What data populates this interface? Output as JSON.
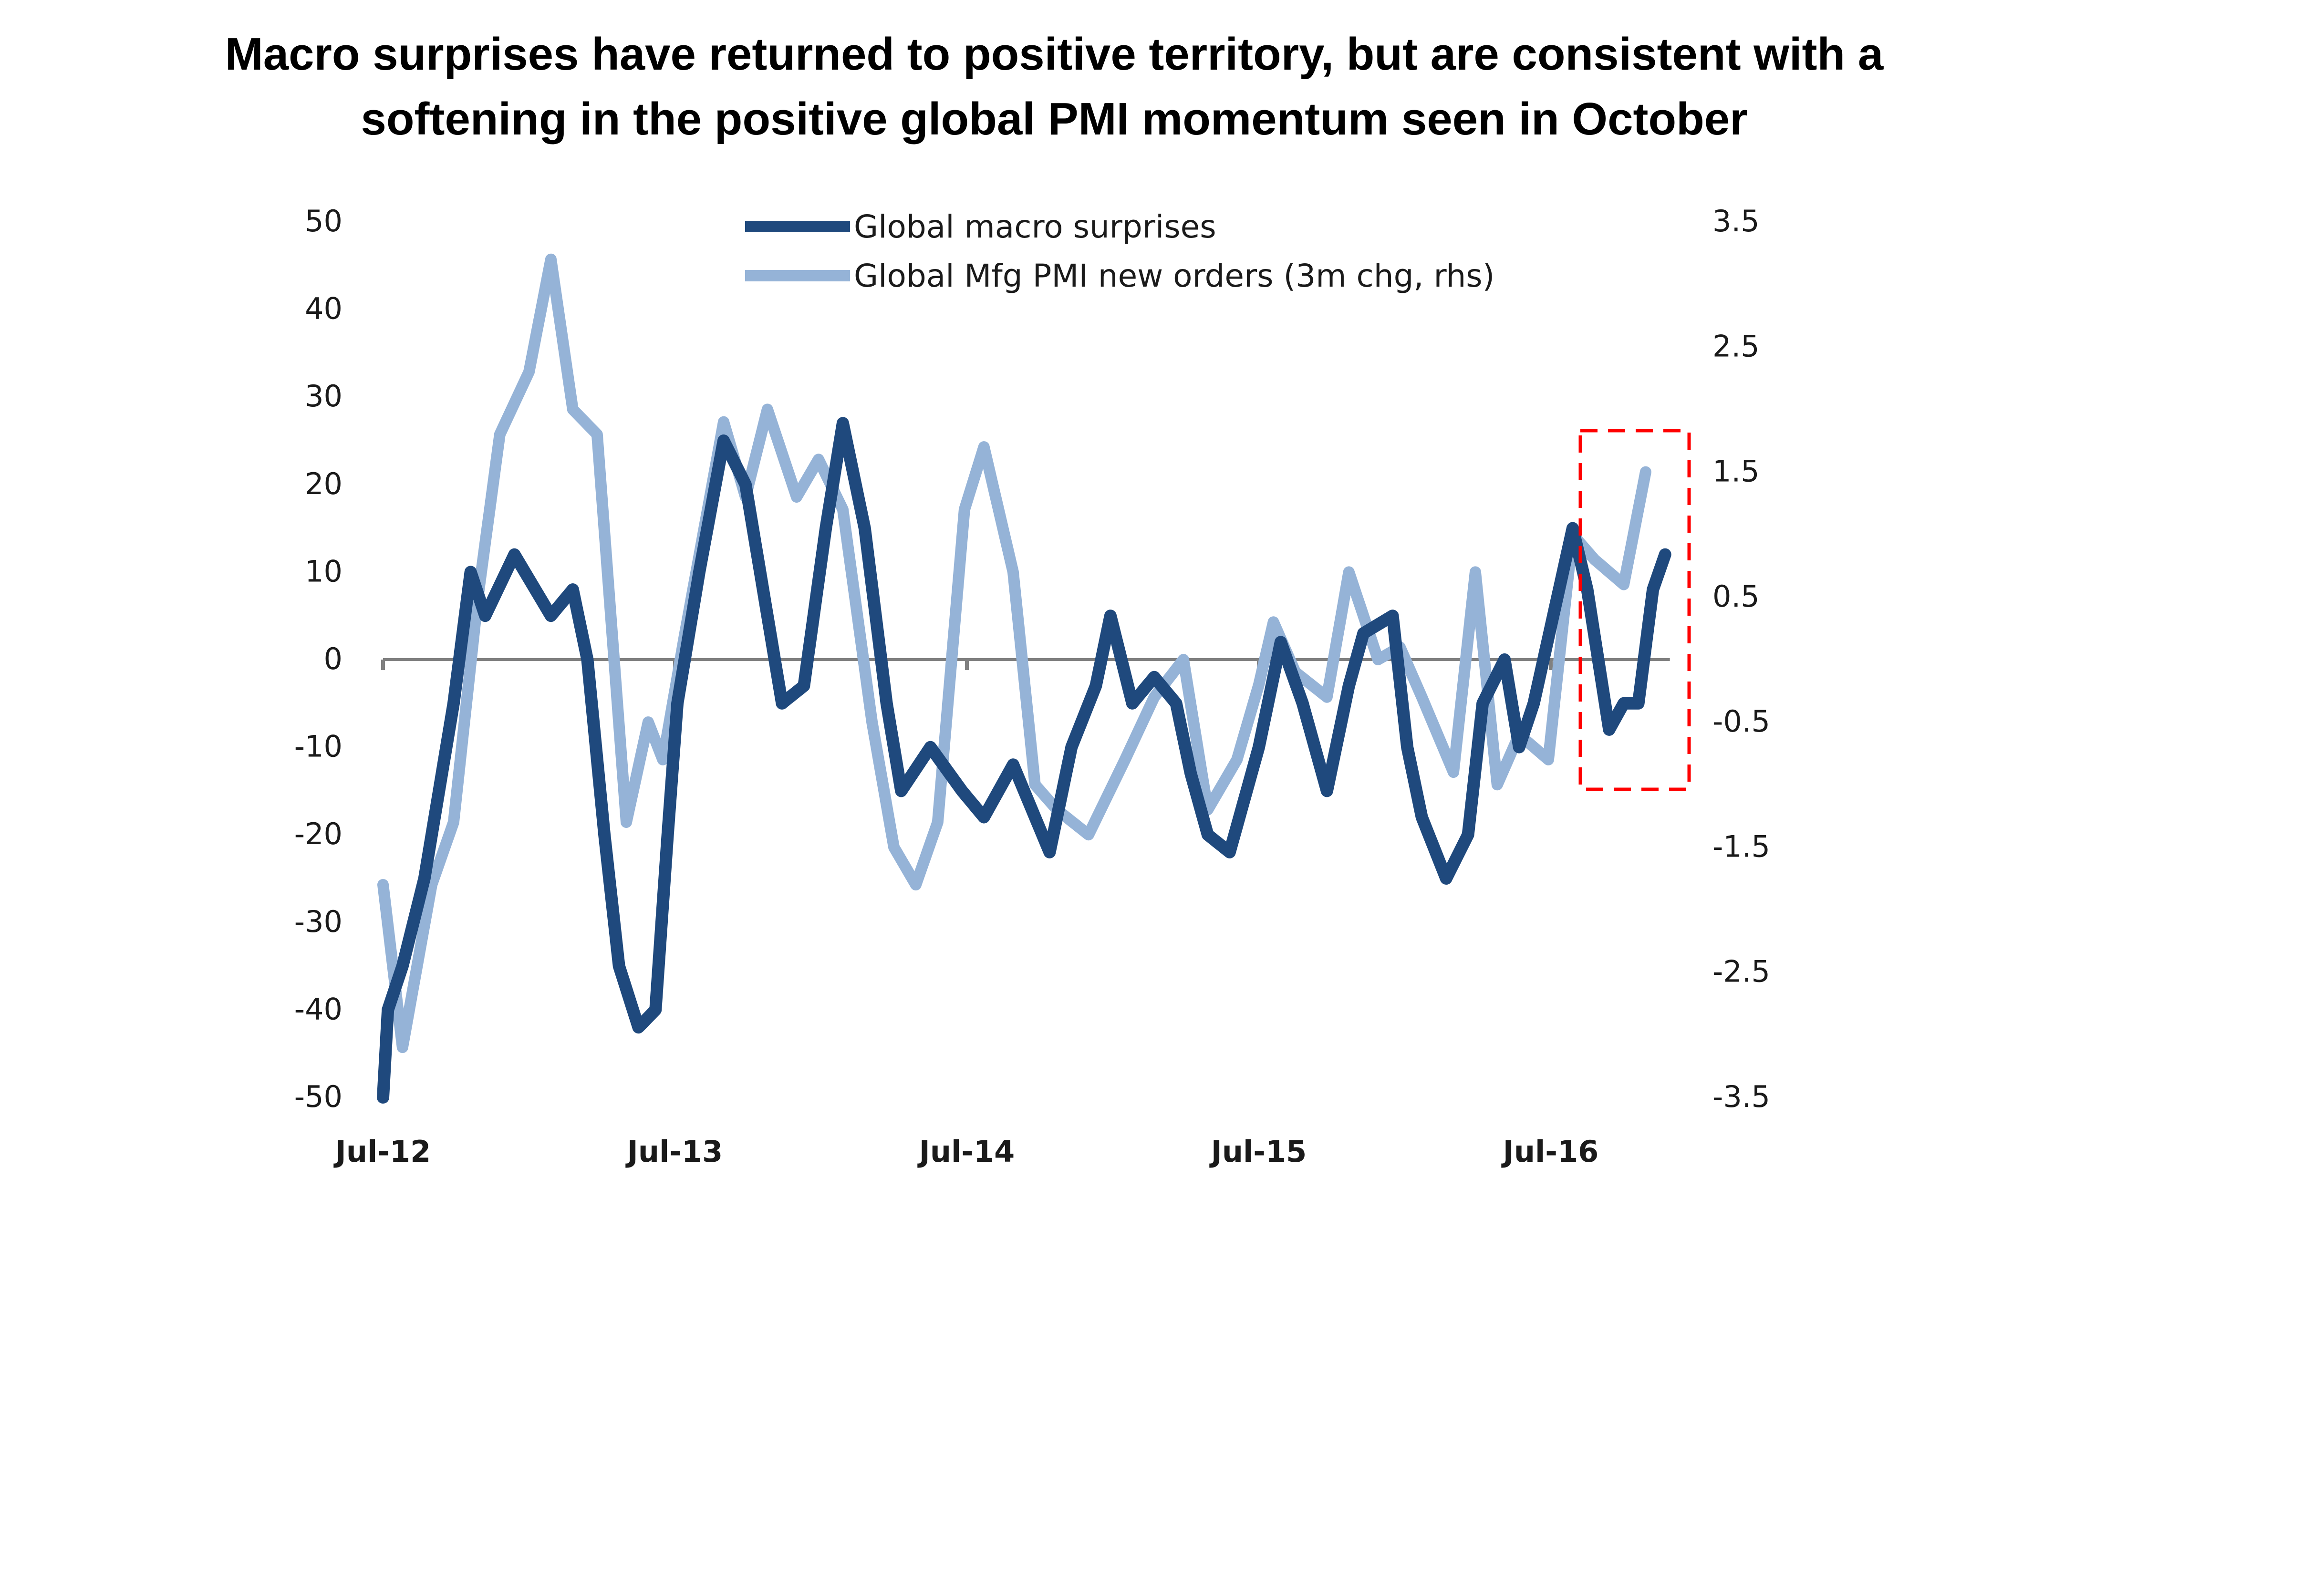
{
  "title": {
    "line1": "Macro surprises have returned to positive territory, but are consistent with a",
    "line2": "softening in the positive global PMI momentum seen in October"
  },
  "chart_data": {
    "type": "line",
    "title": "Macro surprises have returned to positive territory, but are consistent with a softening in the positive global PMI momentum seen in October",
    "x_unit": "months since Jul-12",
    "xlim": [
      0,
      52.7
    ],
    "x_tick_labels": [
      "Jul-12",
      "Jul-13",
      "Jul-14",
      "Jul-15",
      "Jul-16"
    ],
    "x_tick_values": [
      0,
      12,
      24,
      36,
      48
    ],
    "ylim_left": [
      -50,
      50
    ],
    "y_tick_labels_left": [
      "50",
      "40",
      "30",
      "20",
      "10",
      "0",
      "-10",
      "-20",
      "-30",
      "-40",
      "-50"
    ],
    "y_tick_values_left": [
      50,
      40,
      30,
      20,
      10,
      0,
      -10,
      -20,
      -30,
      -40,
      -50
    ],
    "ylim_right": [
      -3.5,
      3.5
    ],
    "y_tick_labels_right": [
      "3.5",
      "2.5",
      "1.5",
      "0.5",
      "-0.5",
      "-1.5",
      "-2.5",
      "-3.5"
    ],
    "y_tick_values_right": [
      3.5,
      2.5,
      1.5,
      0.5,
      -0.5,
      -1.5,
      -2.5,
      -3.5
    ],
    "grid": false,
    "legend_position": "top-center",
    "annotation": "red dashed box highlighting Jul-16 to latest",
    "series": [
      {
        "name": "Global macro surprises",
        "axis": "left",
        "color": "#1f497d",
        "x": [
          0,
          0.2,
          0.8,
          1.7,
          2.6,
          2.9,
          3.6,
          4.2,
          5.4,
          6.9,
          7.8,
          8.4,
          9.1,
          9.7,
          10.5,
          11.2,
          11.7,
          12.1,
          13.0,
          14.0,
          14.9,
          15.8,
          16.4,
          17.3,
          18.2,
          18.9,
          19.8,
          20.7,
          21.3,
          22.5,
          23.8,
          24.7,
          25.9,
          27.4,
          28.3,
          29.3,
          29.9,
          30.8,
          31.7,
          32.6,
          33.2,
          33.9,
          34.8,
          36.0,
          36.9,
          37.8,
          38.8,
          39.7,
          40.3,
          41.5,
          42.1,
          42.7,
          43.7,
          44.6,
          45.2,
          46.1,
          46.7,
          47.3,
          48.9,
          49.5,
          50.4,
          51.0,
          51.6,
          52.2,
          52.7
        ],
        "values": [
          -50,
          -40,
          -35,
          -25,
          -10,
          -5,
          10,
          5,
          12,
          5,
          8,
          0,
          -20,
          -35,
          -42,
          -40,
          -20,
          -5,
          10,
          25,
          20,
          5,
          -5,
          -3,
          15,
          27,
          15,
          -5,
          -15,
          -10,
          -15,
          -18,
          -12,
          -22,
          -10,
          -3,
          5,
          -5,
          -2,
          -5,
          -13,
          -20,
          -22,
          -10,
          2,
          -5,
          -15,
          -3,
          3,
          5,
          -10,
          -18,
          -25,
          -20,
          -5,
          0,
          -10,
          -5,
          15,
          8,
          -8,
          -5,
          -5,
          8,
          12
        ]
      },
      {
        "name": "Global Mfg PMI new orders (3m chg, rhs)",
        "axis": "right",
        "color": "#95b3d7",
        "x": [
          0,
          0.8,
          2.0,
          2.9,
          3.9,
          4.8,
          6.0,
          6.9,
          7.8,
          8.8,
          10.0,
          10.9,
          11.5,
          12.4,
          14.0,
          14.9,
          15.8,
          17.0,
          17.9,
          18.9,
          20.1,
          21.0,
          21.9,
          22.8,
          23.9,
          24.7,
          25.9,
          26.8,
          27.7,
          29.0,
          30.5,
          31.7,
          32.9,
          33.9,
          35.1,
          36.0,
          36.6,
          37.5,
          38.8,
          39.7,
          40.9,
          41.8,
          42.7,
          44.0,
          44.9,
          45.8,
          46.7,
          47.9,
          48.9,
          49.8,
          51.0,
          51.9
        ],
        "values": [
          -1.8,
          -3.1,
          -1.8,
          -1.3,
          0.5,
          1.8,
          2.3,
          3.2,
          2.0,
          1.8,
          -1.3,
          -0.5,
          -0.8,
          0.2,
          1.9,
          1.3,
          2.0,
          1.3,
          1.6,
          1.2,
          -0.5,
          -1.5,
          -1.8,
          -1.3,
          1.2,
          1.7,
          0.7,
          -1.0,
          -1.2,
          -1.4,
          -0.8,
          -0.3,
          0.0,
          -1.2,
          -0.8,
          -0.2,
          0.3,
          -0.1,
          -0.3,
          0.7,
          0.0,
          0.1,
          -0.3,
          -0.9,
          0.7,
          -1.0,
          -0.6,
          -0.8,
          1.0,
          0.8,
          0.6,
          1.5
        ]
      }
    ],
    "colors": {
      "axis": "#808080",
      "highlight_box": "#ff0000"
    }
  }
}
